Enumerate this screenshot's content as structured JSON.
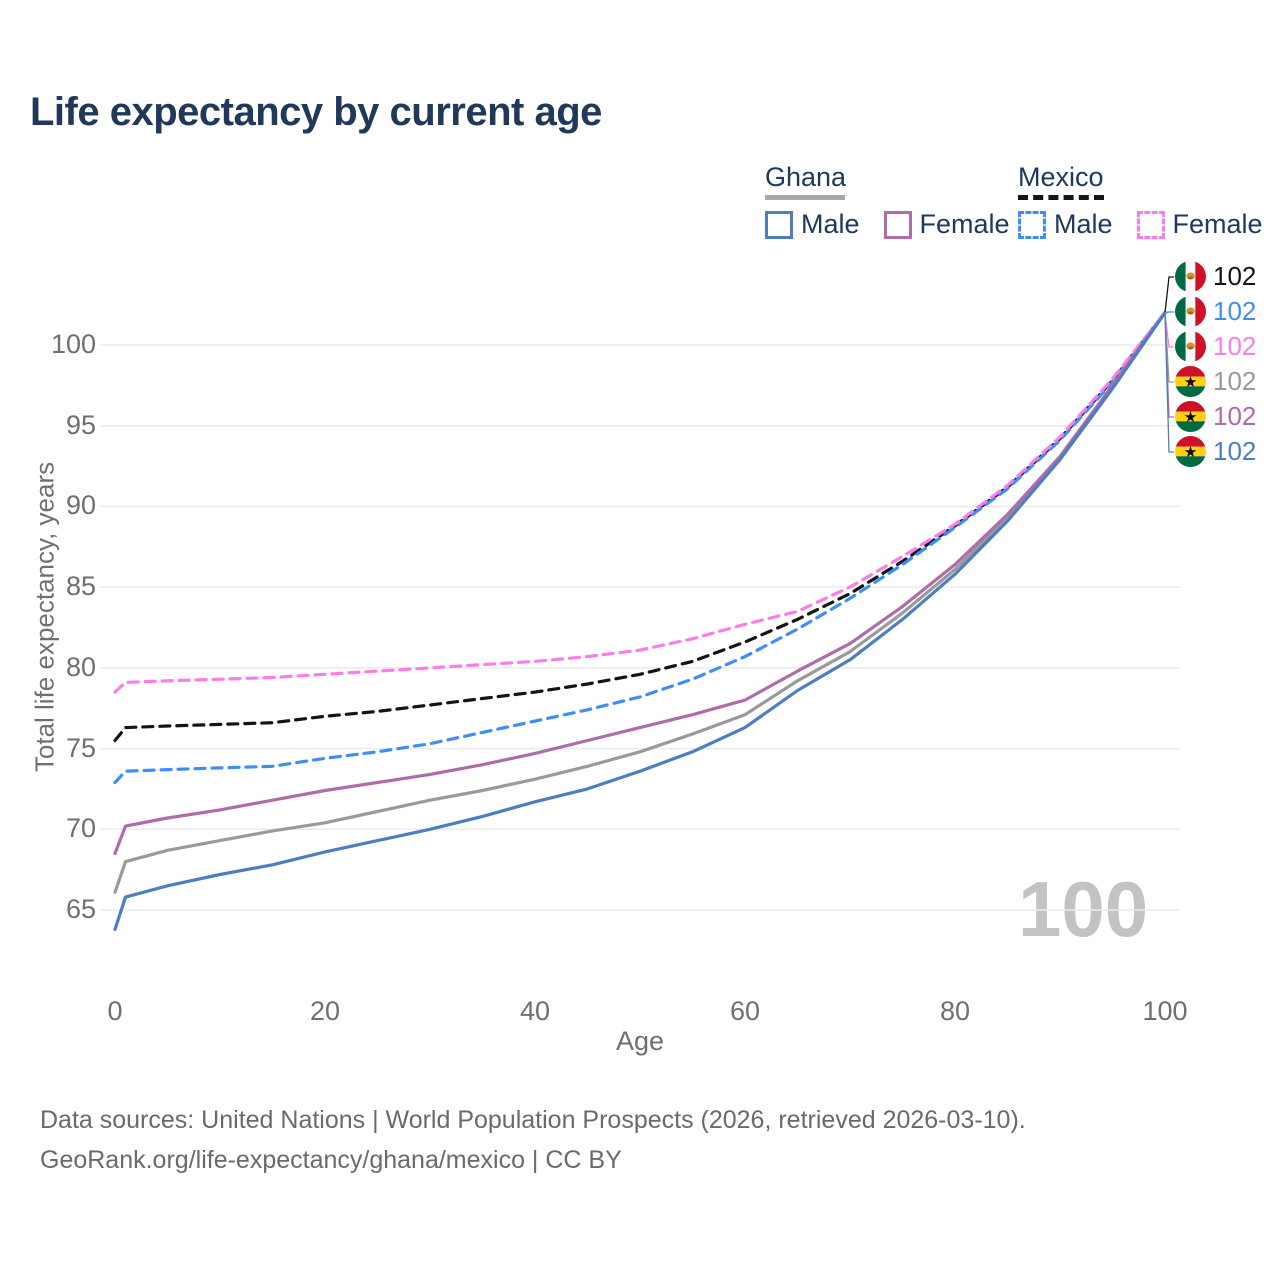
{
  "title": "Life expectancy by current age",
  "legend": {
    "groups": [
      {
        "country": "Ghana",
        "style": "solid",
        "items": [
          {
            "label": "Male",
            "color": "#4e7dc1"
          },
          {
            "label": "Female",
            "color": "#ae6ca8"
          }
        ],
        "underline_color": "#a8a8a8"
      },
      {
        "country": "Mexico",
        "style": "dashed",
        "items": [
          {
            "label": "Male",
            "color": "#3e8ef7"
          },
          {
            "label": "Female",
            "color": "#fc7de8"
          }
        ],
        "underline_color": "#141414"
      }
    ]
  },
  "watermark": "100",
  "footer": {
    "line1": "Data sources: United Nations | World Population Prospects (2026, retrieved 2026-03-10).",
    "line2": "GeoRank.org/life-expectancy/ghana/mexico | CC BY"
  },
  "flags": {
    "mexico": {
      "green": "#006847",
      "white": "#f7f7f7",
      "red": "#ce1126",
      "emblem": "#d0912f",
      "emblem_dark": "#9c6320"
    },
    "ghana": {
      "red": "#ce1126",
      "gold": "#fcd116",
      "green": "#006b3f",
      "star": "#111111"
    }
  },
  "chart_data": {
    "type": "line",
    "title": "Life expectancy by current age",
    "xlabel": "Age",
    "ylabel": "Total life expectancy, years",
    "xlim": [
      0,
      100
    ],
    "ylim": [
      63,
      103
    ],
    "xticks": [
      0,
      20,
      40,
      60,
      80,
      100
    ],
    "yticks": [
      65,
      70,
      75,
      80,
      85,
      90,
      95,
      100
    ],
    "grid": "horizontal",
    "gridline_color": "#ebebeb",
    "x": [
      0,
      1,
      5,
      10,
      15,
      20,
      25,
      30,
      35,
      40,
      45,
      50,
      55,
      60,
      65,
      70,
      75,
      80,
      85,
      90,
      95,
      100
    ],
    "series": [
      {
        "name": "Mexico — Both sexes",
        "country": "Mexico",
        "sex": "both",
        "color": "#141414",
        "dash": "dashed",
        "values": [
          75.5,
          76.3,
          76.4,
          76.5,
          76.6,
          77.0,
          77.3,
          77.7,
          78.1,
          78.5,
          79.0,
          79.6,
          80.4,
          81.6,
          83.0,
          84.6,
          86.6,
          88.8,
          91.2,
          94.2,
          97.8,
          102
        ]
      },
      {
        "name": "Mexico — Male",
        "country": "Mexico",
        "sex": "male",
        "color": "#3e8ef7",
        "dash": "dashed",
        "values": [
          72.9,
          73.6,
          73.7,
          73.8,
          73.9,
          74.4,
          74.8,
          75.3,
          76.0,
          76.7,
          77.4,
          78.2,
          79.3,
          80.7,
          82.4,
          84.3,
          86.4,
          88.7,
          91.1,
          94.1,
          97.7,
          102
        ]
      },
      {
        "name": "Mexico — Female",
        "country": "Mexico",
        "sex": "female",
        "color": "#fc7de8",
        "dash": "dashed",
        "values": [
          78.5,
          79.1,
          79.2,
          79.3,
          79.4,
          79.6,
          79.8,
          80.0,
          80.2,
          80.4,
          80.7,
          81.1,
          81.8,
          82.7,
          83.5,
          85.0,
          86.9,
          88.9,
          91.3,
          94.3,
          97.9,
          102
        ]
      },
      {
        "name": "Ghana — Both sexes",
        "country": "Ghana",
        "sex": "both",
        "color": "#9a9a9a",
        "dash": "solid",
        "values": [
          66.1,
          68.0,
          68.7,
          69.3,
          69.9,
          70.4,
          71.1,
          71.8,
          72.4,
          73.1,
          73.9,
          74.8,
          75.9,
          77.1,
          79.2,
          81.0,
          83.4,
          86.1,
          89.3,
          93.0,
          97.4,
          102
        ]
      },
      {
        "name": "Ghana — Female",
        "country": "Ghana",
        "sex": "female",
        "color": "#ae6ca8",
        "dash": "solid",
        "values": [
          68.5,
          70.2,
          70.7,
          71.2,
          71.8,
          72.4,
          72.9,
          73.4,
          74.0,
          74.7,
          75.5,
          76.3,
          77.1,
          78.0,
          79.8,
          81.5,
          83.8,
          86.4,
          89.5,
          93.1,
          97.5,
          102
        ]
      },
      {
        "name": "Ghana — Male",
        "country": "Ghana",
        "sex": "male",
        "color": "#4e7dc1",
        "dash": "solid",
        "values": [
          63.8,
          65.8,
          66.5,
          67.2,
          67.8,
          68.6,
          69.3,
          70.0,
          70.8,
          71.7,
          72.5,
          73.6,
          74.8,
          76.3,
          78.6,
          80.5,
          83.0,
          85.8,
          89.1,
          92.9,
          97.3,
          102
        ]
      }
    ],
    "end_labels": [
      {
        "flag": "mexico",
        "value": "102",
        "color": "#141414",
        "series": "Mexico — Both sexes"
      },
      {
        "flag": "mexico",
        "value": "102",
        "color": "#3e8ef7",
        "series": "Mexico — Male"
      },
      {
        "flag": "mexico",
        "value": "102",
        "color": "#fc7de8",
        "series": "Mexico — Female"
      },
      {
        "flag": "ghana",
        "value": "102",
        "color": "#9a9a9a",
        "series": "Ghana — Both sexes"
      },
      {
        "flag": "ghana",
        "value": "102",
        "color": "#ae6ca8",
        "series": "Ghana — Female"
      },
      {
        "flag": "ghana",
        "value": "102",
        "color": "#4e7dc1",
        "series": "Ghana — Male"
      }
    ]
  }
}
